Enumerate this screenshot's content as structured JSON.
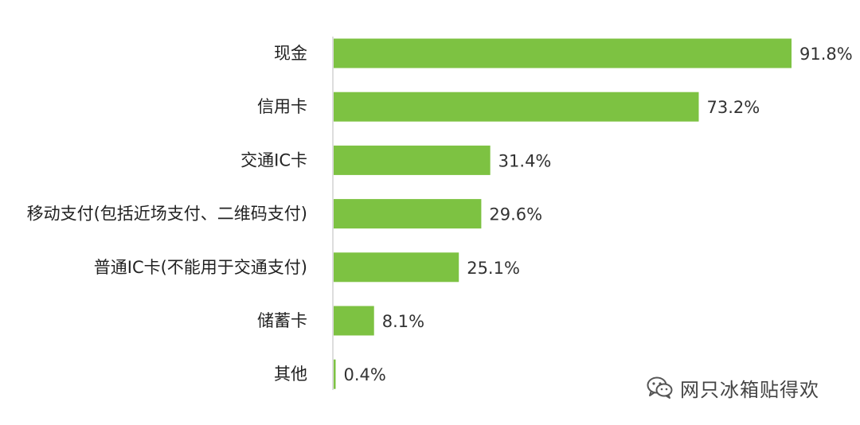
{
  "chart_data": {
    "type": "bar",
    "orientation": "horizontal",
    "categories": [
      "现金",
      "信用卡",
      "交通IC卡",
      "移动支付(包括近场支付、二维码支付)",
      "普通IC卡(不能用于交通支付)",
      "储蓄卡",
      "其他"
    ],
    "values": [
      91.8,
      73.2,
      31.4,
      29.6,
      25.1,
      8.1,
      0.4
    ],
    "value_labels": [
      "91.8%",
      "73.2%",
      "31.4%",
      "29.6%",
      "25.1%",
      "8.1%",
      "0.4%"
    ],
    "xlim": [
      0,
      100
    ],
    "bar_color": "#7dc242",
    "axis_color": "#bbbbbb",
    "grid": false,
    "legend": false
  },
  "watermark": {
    "icon": "wechat-icon",
    "text": "网只冰箱贴得欢"
  }
}
